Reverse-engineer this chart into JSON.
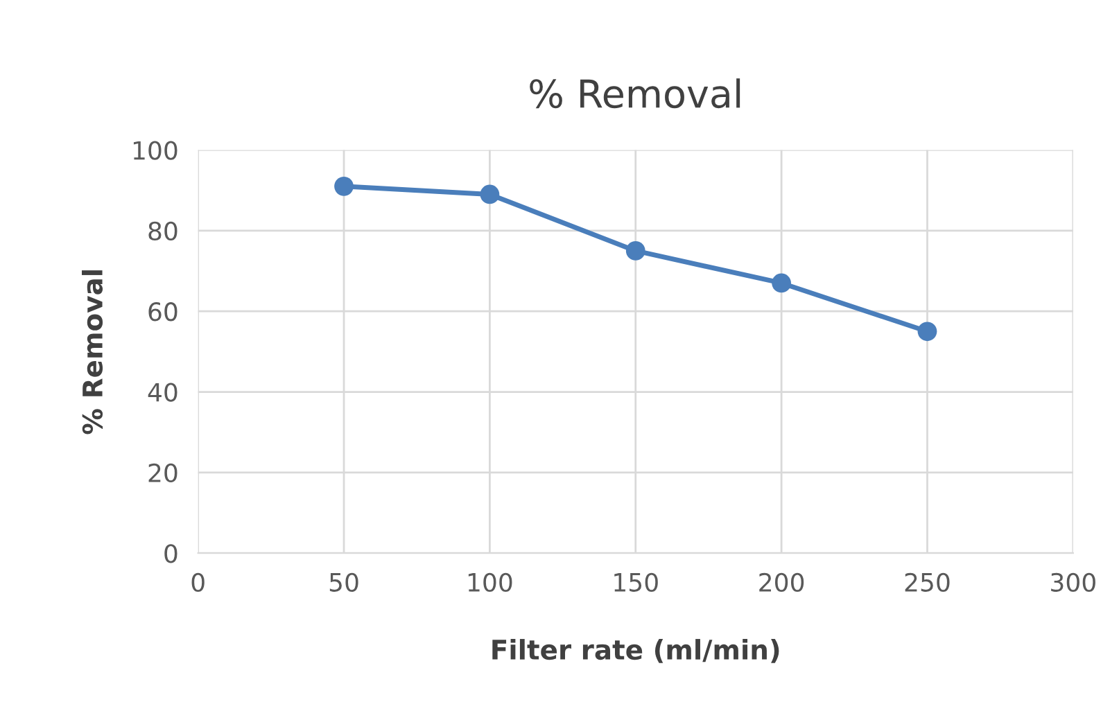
{
  "chart_data": {
    "type": "line",
    "title": "% Removal",
    "xlabel": "Filter rate (ml/min)",
    "ylabel": "% Removal",
    "x": [
      50,
      100,
      150,
      200,
      250
    ],
    "series": [
      {
        "color": "#4a7ebb",
        "values": [
          91,
          89,
          75,
          67,
          55
        ]
      }
    ],
    "xlim": [
      0,
      300
    ],
    "xticks": [
      0,
      50,
      100,
      150,
      200,
      250,
      300
    ],
    "ylim": [
      0,
      100
    ],
    "yticks": [
      0,
      20,
      40,
      60,
      80,
      100
    ],
    "grid": true,
    "marker": "circle",
    "line_style": "solid",
    "legend": false
  }
}
